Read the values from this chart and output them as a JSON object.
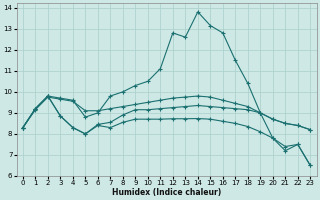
{
  "xlabel": "Humidex (Indice chaleur)",
  "xlim": [
    -0.5,
    23.5
  ],
  "ylim": [
    6,
    14.2
  ],
  "yticks": [
    6,
    7,
    8,
    9,
    10,
    11,
    12,
    13,
    14
  ],
  "xticks": [
    0,
    1,
    2,
    3,
    4,
    5,
    6,
    7,
    8,
    9,
    10,
    11,
    12,
    13,
    14,
    15,
    16,
    17,
    18,
    19,
    20,
    21,
    22,
    23
  ],
  "background_color": "#cde8e5",
  "grid_color": "#aacfcc",
  "line_color": "#1a7070",
  "line1": [
    [
      0,
      8.3
    ],
    [
      1,
      9.2
    ],
    [
      2,
      9.8
    ],
    [
      3,
      9.7
    ],
    [
      4,
      9.6
    ],
    [
      5,
      8.8
    ],
    [
      6,
      9.0
    ],
    [
      7,
      9.8
    ],
    [
      8,
      10.0
    ],
    [
      9,
      10.3
    ],
    [
      10,
      10.5
    ],
    [
      11,
      11.1
    ],
    [
      12,
      12.8
    ],
    [
      13,
      12.6
    ],
    [
      14,
      13.8
    ],
    [
      15,
      13.15
    ],
    [
      16,
      12.8
    ],
    [
      17,
      11.5
    ],
    [
      18,
      10.4
    ],
    [
      19,
      9.0
    ],
    [
      20,
      7.8
    ],
    [
      21,
      7.2
    ],
    [
      22,
      7.5
    ],
    [
      23,
      6.5
    ]
  ],
  "line2": [
    [
      0,
      8.3
    ],
    [
      1,
      9.15
    ],
    [
      2,
      9.75
    ],
    [
      3,
      9.65
    ],
    [
      4,
      9.55
    ],
    [
      5,
      9.1
    ],
    [
      6,
      9.1
    ],
    [
      7,
      9.2
    ],
    [
      8,
      9.3
    ],
    [
      9,
      9.4
    ],
    [
      10,
      9.5
    ],
    [
      11,
      9.6
    ],
    [
      12,
      9.7
    ],
    [
      13,
      9.75
    ],
    [
      14,
      9.8
    ],
    [
      15,
      9.75
    ],
    [
      16,
      9.6
    ],
    [
      17,
      9.45
    ],
    [
      18,
      9.3
    ],
    [
      19,
      9.0
    ],
    [
      20,
      8.7
    ],
    [
      21,
      8.5
    ],
    [
      22,
      8.4
    ],
    [
      23,
      8.2
    ]
  ],
  "line3": [
    [
      0,
      8.3
    ],
    [
      1,
      9.2
    ],
    [
      2,
      9.8
    ],
    [
      3,
      8.85
    ],
    [
      4,
      8.3
    ],
    [
      5,
      8.0
    ],
    [
      6,
      8.45
    ],
    [
      7,
      8.55
    ],
    [
      8,
      8.9
    ],
    [
      9,
      9.15
    ],
    [
      10,
      9.15
    ],
    [
      11,
      9.2
    ],
    [
      12,
      9.25
    ],
    [
      13,
      9.3
    ],
    [
      14,
      9.35
    ],
    [
      15,
      9.3
    ],
    [
      16,
      9.25
    ],
    [
      17,
      9.2
    ],
    [
      18,
      9.15
    ],
    [
      19,
      9.0
    ],
    [
      20,
      8.7
    ],
    [
      21,
      8.5
    ],
    [
      22,
      8.4
    ],
    [
      23,
      8.2
    ]
  ],
  "line4": [
    [
      0,
      8.3
    ],
    [
      1,
      9.2
    ],
    [
      2,
      9.8
    ],
    [
      3,
      8.85
    ],
    [
      4,
      8.3
    ],
    [
      5,
      8.0
    ],
    [
      6,
      8.4
    ],
    [
      7,
      8.3
    ],
    [
      8,
      8.55
    ],
    [
      9,
      8.7
    ],
    [
      10,
      8.7
    ],
    [
      11,
      8.7
    ],
    [
      12,
      8.72
    ],
    [
      13,
      8.72
    ],
    [
      14,
      8.73
    ],
    [
      15,
      8.7
    ],
    [
      16,
      8.6
    ],
    [
      17,
      8.5
    ],
    [
      18,
      8.35
    ],
    [
      19,
      8.1
    ],
    [
      20,
      7.8
    ],
    [
      21,
      7.4
    ],
    [
      22,
      7.5
    ],
    [
      23,
      6.5
    ]
  ]
}
